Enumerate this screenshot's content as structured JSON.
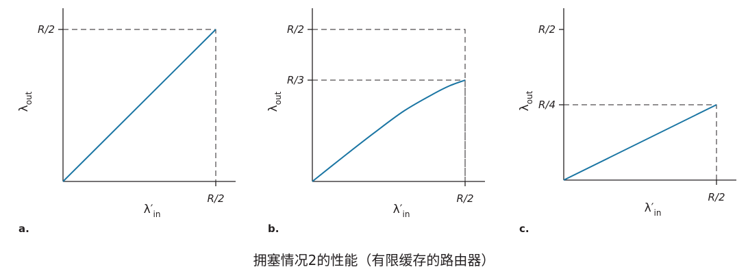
{
  "caption": "拥塞情况2的性能（有限缓存的路由器）",
  "chart_data": [
    {
      "type": "line",
      "panel_label": "a.",
      "xlabel_symbol": "λ′",
      "xlabel_sub": "in",
      "ylabel_symbol": "λ",
      "ylabel_sub": "out",
      "xlim": [
        0,
        0.5
      ],
      "ylim": [
        0,
        0.5
      ],
      "x_ticks": [
        {
          "value": 0.5,
          "label": "R/2"
        }
      ],
      "y_ticks": [
        {
          "value": 0.5,
          "label": "R/2"
        }
      ],
      "series": [
        {
          "x": [
            0,
            0.5
          ],
          "y": [
            0,
            0.5
          ]
        }
      ],
      "guides": [
        {
          "x": 0.5,
          "y": 0.5
        }
      ],
      "color": "#1a75a3"
    },
    {
      "type": "line",
      "panel_label": "b.",
      "xlabel_symbol": "λ′",
      "xlabel_sub": "in",
      "ylabel_symbol": "λ",
      "ylabel_sub": "out",
      "xlim": [
        0,
        0.5
      ],
      "ylim": [
        0,
        0.5
      ],
      "x_ticks": [
        {
          "value": 0.5,
          "label": "R/2"
        }
      ],
      "y_ticks": [
        {
          "value": 0.5,
          "label": "R/2"
        },
        {
          "value": 0.3333,
          "label": "R/3"
        }
      ],
      "series": [
        {
          "x": [
            0,
            0.1,
            0.2,
            0.3,
            0.4,
            0.45,
            0.5
          ],
          "y": [
            0,
            0.08,
            0.158,
            0.232,
            0.29,
            0.315,
            0.3333
          ]
        }
      ],
      "guides": [
        {
          "x": 0.5,
          "y": 0.5
        },
        {
          "x": 0.5,
          "y": 0.3333
        }
      ],
      "color": "#1a75a3"
    },
    {
      "type": "line",
      "panel_label": "c.",
      "xlabel_symbol": "λ′",
      "xlabel_sub": "in",
      "ylabel_symbol": "λ",
      "ylabel_sub": "out",
      "xlim": [
        0,
        0.5
      ],
      "ylim": [
        0,
        0.5
      ],
      "x_ticks": [
        {
          "value": 0.5,
          "label": "R/2"
        }
      ],
      "y_ticks": [
        {
          "value": 0.5,
          "label": "R/2"
        },
        {
          "value": 0.25,
          "label": "R/4"
        }
      ],
      "series": [
        {
          "x": [
            0,
            0.5
          ],
          "y": [
            0,
            0.25
          ]
        }
      ],
      "guides": [
        {
          "x": 0.5,
          "y": 0.25
        }
      ],
      "color": "#1a75a3"
    }
  ]
}
